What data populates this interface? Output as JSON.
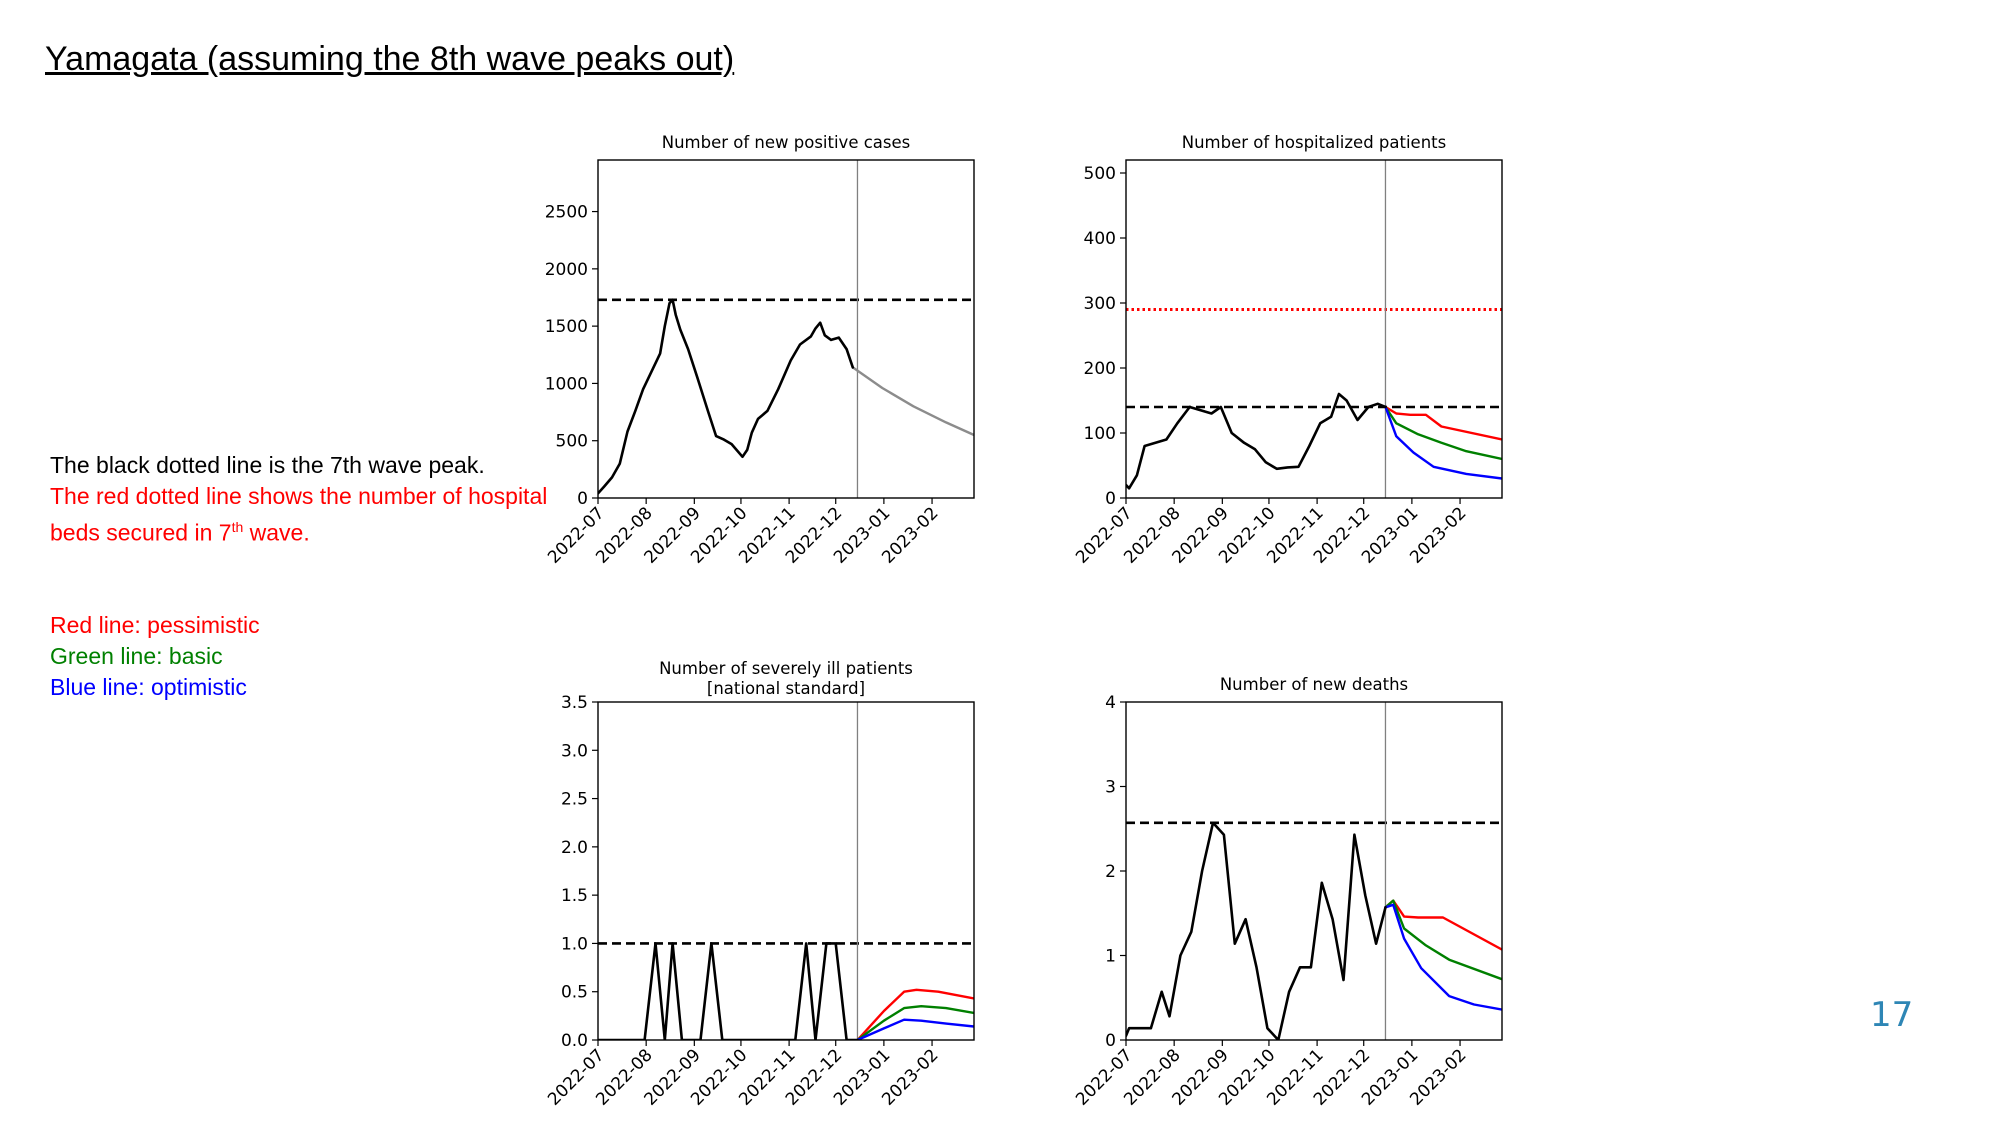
{
  "slide": {
    "title": "Yamagata (assuming the 8th wave peaks out)",
    "page_number": "17"
  },
  "notes": {
    "line1": "The black dotted line is the 7th wave peak.",
    "line2_pre": "The red dotted line shows the number of hospital beds secured in 7",
    "line2_sup": "th",
    "line2_post": " wave.",
    "line3": "Red line: pessimistic",
    "line4": "Green line: basic",
    "line5": "Blue line: optimistic"
  },
  "colors": {
    "observed": "#000000",
    "projection_single": "#8c8c8c",
    "pessimistic": "#ff0000",
    "basic": "#008000",
    "optimistic": "#0000ff",
    "peak_line": "#000000",
    "beds_line": "#ff0000",
    "note_red": "#ff0000",
    "note_green": "#008000",
    "note_blue": "#0000ff",
    "page_number": "#2e86b5"
  },
  "chart_data": [
    {
      "type": "line",
      "title": "Number of new positive cases",
      "x_ticks": [
        "2022-07",
        "2022-08",
        "2022-09",
        "2022-10",
        "2022-11",
        "2022-12",
        "2023-01",
        "2023-02"
      ],
      "xlim": [
        "2022-07-01",
        "2023-02-28"
      ],
      "ylim": [
        0,
        2950
      ],
      "y_ticks": [
        0,
        500,
        1000,
        1500,
        2000,
        2500
      ],
      "divider_date": "2022-12-15",
      "reference_lines": [
        {
          "name": "7th wave peak",
          "value": 1730,
          "style": "dashed"
        }
      ],
      "series": [
        {
          "role": "observed",
          "points": [
            [
              "2022-07-01",
              40
            ],
            [
              "2022-07-05",
              100
            ],
            [
              "2022-07-10",
              180
            ],
            [
              "2022-07-15",
              300
            ],
            [
              "2022-07-20",
              580
            ],
            [
              "2022-07-25",
              760
            ],
            [
              "2022-07-30",
              950
            ],
            [
              "2022-08-05",
              1120
            ],
            [
              "2022-08-10",
              1260
            ],
            [
              "2022-08-13",
              1500
            ],
            [
              "2022-08-16",
              1700
            ],
            [
              "2022-08-18",
              1730
            ],
            [
              "2022-08-20",
              1600
            ],
            [
              "2022-08-23",
              1470
            ],
            [
              "2022-08-28",
              1300
            ],
            [
              "2022-09-03",
              1050
            ],
            [
              "2022-09-10",
              750
            ],
            [
              "2022-09-15",
              540
            ],
            [
              "2022-09-20",
              510
            ],
            [
              "2022-09-25",
              470
            ],
            [
              "2022-10-02",
              360
            ],
            [
              "2022-10-05",
              420
            ],
            [
              "2022-10-08",
              570
            ],
            [
              "2022-10-12",
              690
            ],
            [
              "2022-10-18",
              760
            ],
            [
              "2022-10-25",
              950
            ],
            [
              "2022-11-02",
              1200
            ],
            [
              "2022-11-08",
              1340
            ],
            [
              "2022-11-15",
              1410
            ],
            [
              "2022-11-18",
              1480
            ],
            [
              "2022-11-21",
              1530
            ],
            [
              "2022-11-24",
              1420
            ],
            [
              "2022-11-28",
              1380
            ],
            [
              "2022-12-03",
              1400
            ],
            [
              "2022-12-08",
              1300
            ],
            [
              "2022-12-12",
              1140
            ]
          ]
        },
        {
          "role": "projection",
          "points": [
            [
              "2022-12-12",
              1140
            ],
            [
              "2022-12-31",
              960
            ],
            [
              "2023-01-20",
              800
            ],
            [
              "2023-02-10",
              660
            ],
            [
              "2023-02-28",
              550
            ]
          ]
        }
      ]
    },
    {
      "type": "line",
      "title": "Number of hospitalized patients",
      "x_ticks": [
        "2022-07",
        "2022-08",
        "2022-09",
        "2022-10",
        "2022-11",
        "2022-12",
        "2023-01",
        "2023-02"
      ],
      "xlim": [
        "2022-07-01",
        "2023-02-28"
      ],
      "ylim": [
        0,
        520
      ],
      "y_ticks": [
        0,
        100,
        200,
        300,
        400,
        500
      ],
      "divider_date": "2022-12-15",
      "reference_lines": [
        {
          "name": "7th wave peak",
          "value": 140,
          "style": "dashed"
        },
        {
          "name": "hospital beds secured in 7th wave",
          "value": 290,
          "style": "dotted"
        }
      ],
      "series": [
        {
          "role": "observed",
          "points": [
            [
              "2022-07-01",
              20
            ],
            [
              "2022-07-03",
              15
            ],
            [
              "2022-07-08",
              35
            ],
            [
              "2022-07-13",
              80
            ],
            [
              "2022-07-20",
              85
            ],
            [
              "2022-07-27",
              90
            ],
            [
              "2022-08-03",
              115
            ],
            [
              "2022-08-11",
              140
            ],
            [
              "2022-08-18",
              135
            ],
            [
              "2022-08-25",
              130
            ],
            [
              "2022-08-31",
              140
            ],
            [
              "2022-09-07",
              100
            ],
            [
              "2022-09-15",
              85
            ],
            [
              "2022-09-22",
              75
            ],
            [
              "2022-09-29",
              55
            ],
            [
              "2022-10-06",
              45
            ],
            [
              "2022-10-13",
              47
            ],
            [
              "2022-10-20",
              48
            ],
            [
              "2022-10-27",
              80
            ],
            [
              "2022-11-03",
              115
            ],
            [
              "2022-11-10",
              125
            ],
            [
              "2022-11-15",
              160
            ],
            [
              "2022-11-20",
              150
            ],
            [
              "2022-11-27",
              120
            ],
            [
              "2022-12-04",
              140
            ],
            [
              "2022-12-10",
              145
            ],
            [
              "2022-12-15",
              140
            ]
          ]
        },
        {
          "role": "pessimistic",
          "points": [
            [
              "2022-12-15",
              140
            ],
            [
              "2022-12-22",
              130
            ],
            [
              "2022-12-31",
              128
            ],
            [
              "2023-01-10",
              128
            ],
            [
              "2023-01-20",
              110
            ],
            [
              "2023-02-28",
              90
            ]
          ]
        },
        {
          "role": "basic",
          "points": [
            [
              "2022-12-15",
              140
            ],
            [
              "2022-12-22",
              115
            ],
            [
              "2023-01-05",
              98
            ],
            [
              "2023-01-20",
              85
            ],
            [
              "2023-02-05",
              72
            ],
            [
              "2023-02-28",
              60
            ]
          ]
        },
        {
          "role": "optimistic",
          "points": [
            [
              "2022-12-15",
              140
            ],
            [
              "2022-12-22",
              95
            ],
            [
              "2023-01-02",
              70
            ],
            [
              "2023-01-15",
              48
            ],
            [
              "2023-02-05",
              37
            ],
            [
              "2023-02-28",
              30
            ]
          ]
        }
      ]
    },
    {
      "type": "line",
      "title": "Number of severely ill patients",
      "subtitle": "[national standard]",
      "x_ticks": [
        "2022-07",
        "2022-08",
        "2022-09",
        "2022-10",
        "2022-11",
        "2022-12",
        "2023-01",
        "2023-02"
      ],
      "xlim": [
        "2022-07-01",
        "2023-02-28"
      ],
      "ylim": [
        0,
        3.5
      ],
      "y_ticks": [
        0.0,
        0.5,
        1.0,
        1.5,
        2.0,
        2.5,
        3.0,
        3.5
      ],
      "y_tick_format": 1,
      "divider_date": "2022-12-15",
      "reference_lines": [
        {
          "name": "7th wave peak",
          "value": 1.0,
          "style": "dashed"
        }
      ],
      "series": [
        {
          "role": "observed",
          "points": [
            [
              "2022-07-01",
              0
            ],
            [
              "2022-07-31",
              0
            ],
            [
              "2022-08-07",
              1
            ],
            [
              "2022-08-13",
              0
            ],
            [
              "2022-08-18",
              1
            ],
            [
              "2022-08-24",
              0
            ],
            [
              "2022-09-05",
              0
            ],
            [
              "2022-09-12",
              1
            ],
            [
              "2022-09-19",
              0
            ],
            [
              "2022-11-05",
              0
            ],
            [
              "2022-11-12",
              1
            ],
            [
              "2022-11-18",
              0
            ],
            [
              "2022-11-25",
              1
            ],
            [
              "2022-12-01",
              1
            ],
            [
              "2022-12-08",
              0
            ],
            [
              "2022-12-15",
              0
            ]
          ]
        },
        {
          "role": "pessimistic",
          "points": [
            [
              "2022-12-15",
              0
            ],
            [
              "2023-01-01",
              0.3
            ],
            [
              "2023-01-14",
              0.5
            ],
            [
              "2023-01-22",
              0.52
            ],
            [
              "2023-02-05",
              0.5
            ],
            [
              "2023-02-28",
              0.43
            ]
          ]
        },
        {
          "role": "basic",
          "points": [
            [
              "2022-12-15",
              0
            ],
            [
              "2023-01-01",
              0.2
            ],
            [
              "2023-01-14",
              0.33
            ],
            [
              "2023-01-25",
              0.35
            ],
            [
              "2023-02-10",
              0.33
            ],
            [
              "2023-02-28",
              0.28
            ]
          ]
        },
        {
          "role": "optimistic",
          "points": [
            [
              "2022-12-15",
              0
            ],
            [
              "2023-01-01",
              0.12
            ],
            [
              "2023-01-14",
              0.21
            ],
            [
              "2023-01-25",
              0.2
            ],
            [
              "2023-02-10",
              0.17
            ],
            [
              "2023-02-28",
              0.14
            ]
          ]
        }
      ]
    },
    {
      "type": "line",
      "title": "Number of new deaths",
      "x_ticks": [
        "2022-07",
        "2022-08",
        "2022-09",
        "2022-10",
        "2022-11",
        "2022-12",
        "2023-01",
        "2023-02"
      ],
      "xlim": [
        "2022-07-01",
        "2023-02-28"
      ],
      "ylim": [
        0,
        4
      ],
      "y_ticks": [
        0,
        1,
        2,
        3,
        4
      ],
      "divider_date": "2022-12-15",
      "reference_lines": [
        {
          "name": "7th wave peak",
          "value": 2.57,
          "style": "dashed"
        }
      ],
      "series": [
        {
          "role": "observed",
          "points": [
            [
              "2022-07-01",
              0.05
            ],
            [
              "2022-07-03",
              0.14
            ],
            [
              "2022-07-10",
              0.14
            ],
            [
              "2022-07-17",
              0.14
            ],
            [
              "2022-07-24",
              0.57
            ],
            [
              "2022-07-29",
              0.28
            ],
            [
              "2022-08-05",
              1.0
            ],
            [
              "2022-08-12",
              1.28
            ],
            [
              "2022-08-19",
              2.0
            ],
            [
              "2022-08-26",
              2.57
            ],
            [
              "2022-09-02",
              2.43
            ],
            [
              "2022-09-09",
              1.14
            ],
            [
              "2022-09-16",
              1.43
            ],
            [
              "2022-09-23",
              0.86
            ],
            [
              "2022-09-30",
              0.14
            ],
            [
              "2022-10-07",
              0.0
            ],
            [
              "2022-10-14",
              0.57
            ],
            [
              "2022-10-21",
              0.86
            ],
            [
              "2022-10-28",
              0.86
            ],
            [
              "2022-11-04",
              1.86
            ],
            [
              "2022-11-11",
              1.43
            ],
            [
              "2022-11-18",
              0.71
            ],
            [
              "2022-11-25",
              2.43
            ],
            [
              "2022-12-02",
              1.71
            ],
            [
              "2022-12-09",
              1.14
            ],
            [
              "2022-12-15",
              1.57
            ]
          ]
        },
        {
          "role": "pessimistic",
          "points": [
            [
              "2022-12-15",
              1.57
            ],
            [
              "2022-12-20",
              1.65
            ],
            [
              "2022-12-27",
              1.46
            ],
            [
              "2023-01-05",
              1.45
            ],
            [
              "2023-01-21",
              1.45
            ],
            [
              "2023-02-28",
              1.07
            ]
          ]
        },
        {
          "role": "basic",
          "points": [
            [
              "2022-12-15",
              1.57
            ],
            [
              "2022-12-20",
              1.65
            ],
            [
              "2022-12-27",
              1.32
            ],
            [
              "2023-01-10",
              1.12
            ],
            [
              "2023-01-25",
              0.95
            ],
            [
              "2023-02-28",
              0.72
            ]
          ]
        },
        {
          "role": "optimistic",
          "points": [
            [
              "2022-12-15",
              1.57
            ],
            [
              "2022-12-20",
              1.6
            ],
            [
              "2022-12-27",
              1.2
            ],
            [
              "2023-01-07",
              0.85
            ],
            [
              "2023-01-25",
              0.52
            ],
            [
              "2023-02-10",
              0.42
            ],
            [
              "2023-02-28",
              0.36
            ]
          ]
        }
      ]
    }
  ]
}
